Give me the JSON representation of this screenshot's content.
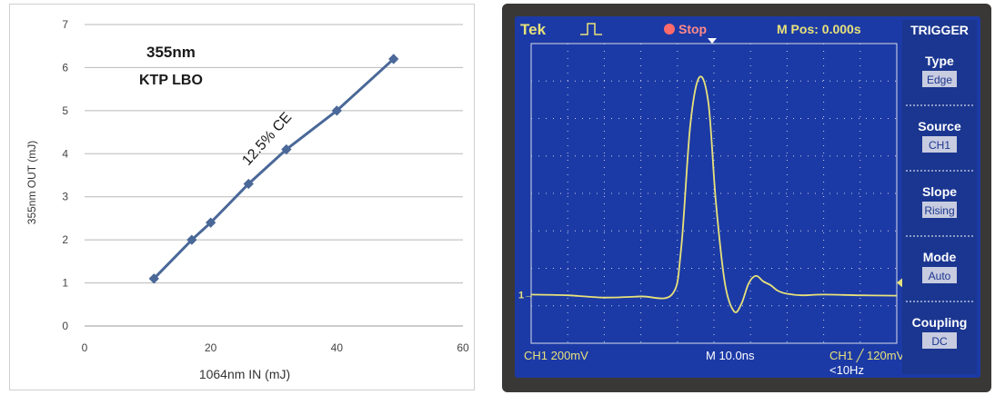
{
  "chart_data": [
    {
      "type": "line",
      "annotation_title": "355nm",
      "annotation_subtitle": "KTP LBO",
      "annotation_slope": "12.5% CE",
      "xlabel": "1064nm IN (mJ)",
      "ylabel": "355nm OUT (mJ)",
      "xlim": [
        0,
        60
      ],
      "ylim": [
        0,
        7
      ],
      "xticks": [
        "0",
        "20",
        "40",
        "60"
      ],
      "yticks": [
        "0",
        "1",
        "2",
        "3",
        "4",
        "5",
        "6",
        "7"
      ],
      "grid": true,
      "legend": "none",
      "series": [
        {
          "x": [
            11,
            17,
            20,
            26,
            32,
            40,
            49
          ],
          "values": [
            1.1,
            2.0,
            2.4,
            3.3,
            4.1,
            5.0,
            6.2
          ]
        }
      ],
      "line_color": "#4a6898",
      "marker_color": "#4a6898"
    },
    {
      "type": "line",
      "scope": {
        "brand": "Tek",
        "status": "Stop",
        "mpos": "M Pos: 0.000s",
        "ch1_scale": "CH1  200mV",
        "timebase": "M 10.0ns",
        "trigger_readout": "CH1 ╱ 120mV",
        "trigger_freq": "<10Hz",
        "ch_marker": "1→",
        "menu_title": "TRIGGER",
        "menu": [
          {
            "label": "Type",
            "value": "Edge"
          },
          {
            "label": "Source",
            "value": "CH1"
          },
          {
            "label": "Slope",
            "value": "Rising"
          },
          {
            "label": "Mode",
            "value": "Auto"
          },
          {
            "label": "Coupling",
            "value": "DC"
          }
        ]
      },
      "grid": true,
      "xlim": [
        0,
        10
      ],
      "ylim": [
        -4,
        4
      ],
      "series": [
        {
          "x": [
            0,
            1,
            2,
            3,
            3.85,
            4.1,
            4.35,
            4.6,
            4.85,
            5.05,
            5.3,
            5.55,
            5.75,
            5.95,
            6.15,
            6.35,
            6.55,
            6.75,
            7.0,
            7.4,
            8.0,
            9.0,
            10
          ],
          "values": [
            -2.7,
            -2.72,
            -2.78,
            -2.75,
            -2.7,
            -1.5,
            1.8,
            3.1,
            2.4,
            -0.2,
            -2.4,
            -3.15,
            -2.95,
            -2.4,
            -2.2,
            -2.35,
            -2.45,
            -2.6,
            -2.68,
            -2.72,
            -2.7,
            -2.72,
            -2.73
          ]
        }
      ],
      "trace_color": "#e8e27a"
    }
  ]
}
